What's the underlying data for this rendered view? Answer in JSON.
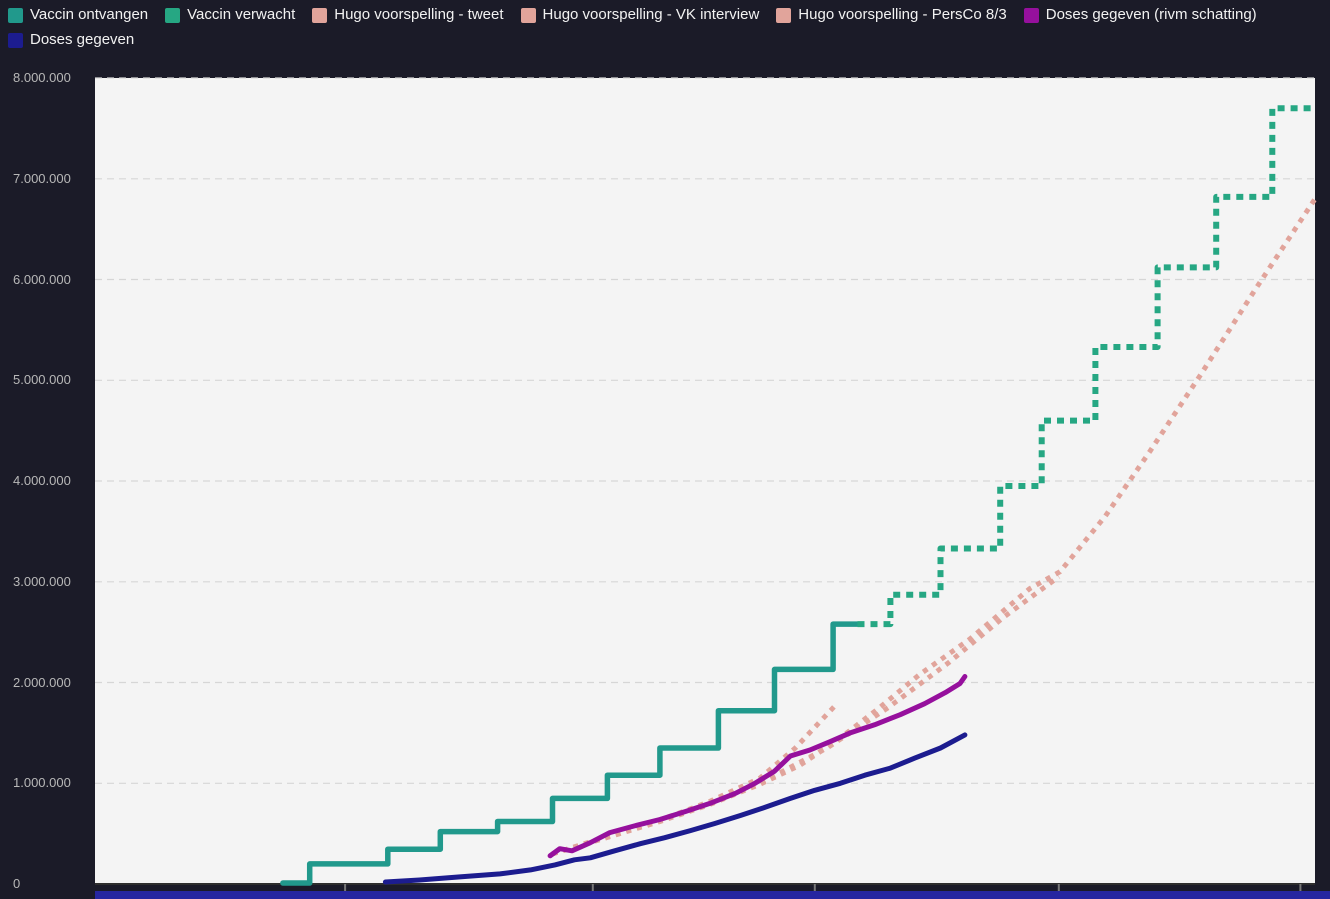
{
  "colors": {
    "page_background": "#1b1b28",
    "plot_background": "#f4f4f4",
    "next_chart_strip": "#2626a0"
  },
  "legend": {
    "items": [
      {
        "id": "vaccin-ontvangen",
        "label": "Vaccin ontvangen",
        "color": "#21998c"
      },
      {
        "id": "vaccin-verwacht",
        "label": "Vaccin verwacht",
        "color": "#26a783"
      },
      {
        "id": "hugo-tweet",
        "label": "Hugo voorspelling - tweet",
        "color": "#e1a49b"
      },
      {
        "id": "hugo-vk-interview",
        "label": "Hugo voorspelling - VK interview",
        "color": "#e1a49b"
      },
      {
        "id": "hugo-persco-8-3",
        "label": "Hugo voorspelling - PersCo 8/3",
        "color": "#e1a49b"
      },
      {
        "id": "doses-gegeven-rivm",
        "label": "Doses gegeven (rivm schatting)",
        "color": "#96109d"
      },
      {
        "id": "doses-gegeven",
        "label": "Doses gegeven",
        "color": "#1c1c8f"
      }
    ]
  },
  "chart_data": {
    "type": "line",
    "title": "",
    "xlabel": "",
    "ylabel": "",
    "ylim": [
      0,
      8000000
    ],
    "ytick_interval": 1000000,
    "ytick_labels": [
      "0",
      "1.000.000",
      "2.000.000",
      "3.000.000",
      "4.000.000",
      "5.000.000",
      "6.000.000",
      "7.000.000",
      "8.000.000"
    ],
    "x_unit": "fraction of plot width (x-axis tick labels not visible in screenshot)",
    "xticks": [
      0.205,
      0.408,
      0.59,
      0.79,
      0.988
    ],
    "grid": "horizontal dashed",
    "legend_position": "top",
    "colors": {
      "grid": "#d6d6d6",
      "axis": "#2e2e2e",
      "tick": "#777777",
      "ylabel": "#b8b8b8"
    },
    "series": [
      {
        "id": "vaccin-ontvangen",
        "name": "Vaccin ontvangen",
        "color": "#21998c",
        "width": 5.5,
        "dash": null,
        "step": true,
        "points": [
          [
            0.154,
            10000
          ],
          [
            0.176,
            200000
          ],
          [
            0.24,
            345000
          ],
          [
            0.283,
            520000
          ],
          [
            0.33,
            620000
          ],
          [
            0.375,
            850000
          ],
          [
            0.42,
            1080000
          ],
          [
            0.463,
            1350000
          ],
          [
            0.511,
            1720000
          ],
          [
            0.557,
            2130000
          ],
          [
            0.605,
            2580000
          ],
          [
            0.625,
            2580000
          ]
        ]
      },
      {
        "id": "vaccin-verwacht",
        "name": "Vaccin verwacht",
        "color": "#26a783",
        "width": 6,
        "dash": "7 6",
        "step": true,
        "points": [
          [
            0.625,
            2580000
          ],
          [
            0.652,
            2870000
          ],
          [
            0.693,
            3330000
          ],
          [
            0.742,
            3950000
          ],
          [
            0.776,
            4600000
          ],
          [
            0.82,
            5330000
          ],
          [
            0.871,
            6120000
          ],
          [
            0.919,
            6820000
          ],
          [
            0.965,
            7700000
          ],
          [
            1.0,
            7700000
          ]
        ]
      },
      {
        "id": "hugo-tweet",
        "name": "Hugo voorspelling - tweet",
        "color": "#e1a49b",
        "width": 5,
        "dash": "5 6",
        "step": false,
        "points": [
          [
            0.375,
            300000
          ],
          [
            0.43,
            500000
          ],
          [
            0.49,
            750000
          ],
          [
            0.545,
            1000000
          ],
          [
            0.6,
            1350000
          ],
          [
            0.65,
            1750000
          ],
          [
            0.7,
            2200000
          ],
          [
            0.745,
            2650000
          ],
          [
            0.79,
            3050000
          ]
        ]
      },
      {
        "id": "hugo-vk-interview",
        "name": "Hugo voorspelling - VK interview",
        "color": "#e1a49b",
        "width": 5,
        "dash": "5 6",
        "step": false,
        "points": [
          [
            0.375,
            300000
          ],
          [
            0.422,
            480000
          ],
          [
            0.463,
            630000
          ],
          [
            0.504,
            820000
          ],
          [
            0.545,
            1050000
          ],
          [
            0.574,
            1350000
          ],
          [
            0.609,
            1800000
          ]
        ]
      },
      {
        "id": "hugo-persco-8-3",
        "name": "Hugo voorspelling - PersCo 8/3",
        "color": "#e1a49b",
        "width": 5,
        "dash": "5 6",
        "step": false,
        "points": [
          [
            0.375,
            300000
          ],
          [
            0.422,
            470000
          ],
          [
            0.463,
            620000
          ],
          [
            0.504,
            790000
          ],
          [
            0.545,
            990000
          ],
          [
            0.578,
            1180000
          ],
          [
            0.611,
            1450000
          ],
          [
            0.643,
            1750000
          ],
          [
            0.676,
            2080000
          ],
          [
            0.717,
            2430000
          ],
          [
            0.766,
            2930000
          ],
          [
            0.791,
            3100000
          ],
          [
            0.828,
            3650000
          ],
          [
            0.865,
            4300000
          ],
          [
            0.906,
            5050000
          ],
          [
            0.951,
            5900000
          ],
          [
            1.0,
            6800000
          ]
        ]
      },
      {
        "id": "doses-gegeven-rivm",
        "name": "Doses gegeven (rivm schatting)",
        "color": "#96109d",
        "width": 5,
        "dash": null,
        "step": false,
        "points": [
          [
            0.373,
            280000
          ],
          [
            0.381,
            350000
          ],
          [
            0.391,
            330000
          ],
          [
            0.406,
            410000
          ],
          [
            0.422,
            510000
          ],
          [
            0.443,
            580000
          ],
          [
            0.463,
            640000
          ],
          [
            0.484,
            720000
          ],
          [
            0.504,
            800000
          ],
          [
            0.525,
            900000
          ],
          [
            0.541,
            1000000
          ],
          [
            0.557,
            1120000
          ],
          [
            0.57,
            1270000
          ],
          [
            0.586,
            1330000
          ],
          [
            0.602,
            1410000
          ],
          [
            0.619,
            1500000
          ],
          [
            0.639,
            1580000
          ],
          [
            0.66,
            1680000
          ],
          [
            0.68,
            1790000
          ],
          [
            0.697,
            1900000
          ],
          [
            0.709,
            1990000
          ],
          [
            0.713,
            2060000
          ]
        ]
      },
      {
        "id": "doses-gegeven",
        "name": "Doses gegeven",
        "color": "#1c1c8f",
        "width": 5,
        "dash": null,
        "step": false,
        "points": [
          [
            0.238,
            20000
          ],
          [
            0.266,
            40000
          ],
          [
            0.299,
            70000
          ],
          [
            0.332,
            100000
          ],
          [
            0.357,
            140000
          ],
          [
            0.377,
            190000
          ],
          [
            0.393,
            240000
          ],
          [
            0.406,
            260000
          ],
          [
            0.426,
            330000
          ],
          [
            0.447,
            400000
          ],
          [
            0.467,
            460000
          ],
          [
            0.488,
            530000
          ],
          [
            0.508,
            600000
          ],
          [
            0.529,
            680000
          ],
          [
            0.549,
            760000
          ],
          [
            0.57,
            850000
          ],
          [
            0.59,
            930000
          ],
          [
            0.611,
            1000000
          ],
          [
            0.631,
            1080000
          ],
          [
            0.652,
            1150000
          ],
          [
            0.672,
            1250000
          ],
          [
            0.693,
            1350000
          ],
          [
            0.713,
            1480000
          ]
        ]
      }
    ]
  }
}
